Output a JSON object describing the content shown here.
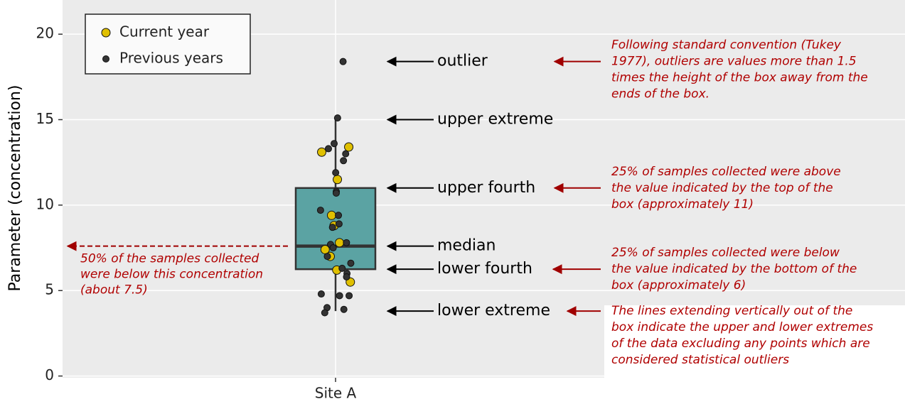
{
  "chart_data": {
    "type": "box",
    "y_label": "Parameter (concentration)",
    "categories": [
      "Site A"
    ],
    "ylim": [
      -0.1,
      22
    ],
    "yticks": [
      0,
      5,
      10,
      15,
      20
    ],
    "grid": true,
    "legend": "top-left",
    "box": {
      "whisker_low": 3.8,
      "q1": 6.25,
      "median": 7.6,
      "q3": 11,
      "whisker_high": 15,
      "color": "#5ba3a3"
    },
    "outliers": [
      18.4
    ],
    "series": [
      {
        "name": "Current year",
        "color": "#e0c000",
        "values": [
          13.4,
          13.1,
          11.5,
          9.4,
          8.8,
          7.8,
          7.4,
          7.0,
          6.2,
          5.5
        ]
      },
      {
        "name": "Previous years",
        "color": "#333333",
        "values": [
          18.4,
          15.1,
          13.6,
          13.3,
          13.0,
          12.6,
          11.9,
          10.8,
          10.7,
          9.7,
          9.4,
          8.9,
          8.7,
          7.8,
          7.7,
          7.5,
          7.0,
          6.6,
          6.3,
          6.0,
          5.8,
          4.8,
          4.7,
          4.7,
          4.0,
          3.9,
          3.7
        ]
      }
    ],
    "box_labels": {
      "outliers": "outlier",
      "whisker_high": "upper extreme",
      "q3": "upper fourth",
      "median": "median",
      "q1": "lower fourth",
      "whisker_low": "lower extreme"
    },
    "notes": {
      "outliers": [
        "Following standard convention (Tukey",
        "1977), outliers are values more than 1.5",
        "times the height of the box away from the",
        "ends of the box."
      ],
      "q3": [
        "25% of samples collected were above",
        "the value indicated by the top of the",
        "box (approximately 11)"
      ],
      "q1": [
        "25% of samples collected were below",
        "the value indicated by the bottom of the",
        "box (approximately 6)"
      ],
      "whisker_low": [
        "The lines extending vertically out of the",
        "box indicate the upper and lower extremes",
        "of the data excluding any points which are",
        "considered statistical outliers"
      ],
      "median": [
        "50% of the samples collected",
        "were below this concentration",
        "(about 7.5)"
      ]
    }
  }
}
